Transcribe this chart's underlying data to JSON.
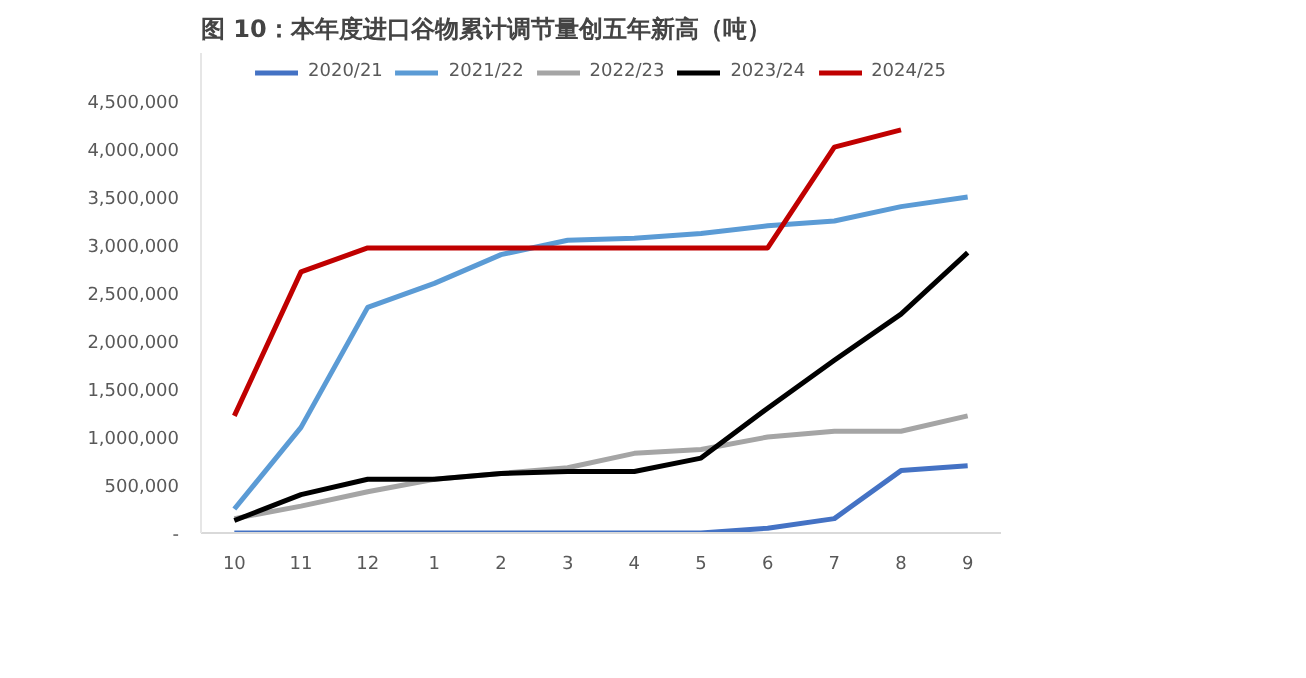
{
  "chart_data": {
    "type": "line",
    "title": "图 10：本年度进口谷物累计调节量创五年新高（吨）",
    "categories": [
      "10",
      "11",
      "12",
      "1",
      "2",
      "3",
      "4",
      "5",
      "6",
      "7",
      "8",
      "9"
    ],
    "series": [
      {
        "name": "2020/21",
        "color": "#4472c4",
        "values": [
          0,
          0,
          0,
          0,
          0,
          0,
          0,
          0,
          50000,
          150000,
          650000,
          700000
        ]
      },
      {
        "name": "2021/22",
        "color": "#5b9bd5",
        "values": [
          250000,
          1100000,
          2350000,
          2600000,
          2900000,
          3050000,
          3070000,
          3120000,
          3200000,
          3250000,
          3400000,
          3500000
        ]
      },
      {
        "name": "2022/23",
        "color": "#a5a5a5",
        "values": [
          150000,
          280000,
          430000,
          560000,
          620000,
          680000,
          830000,
          870000,
          1000000,
          1060000,
          1060000,
          1220000
        ]
      },
      {
        "name": "2023/24",
        "color": "#000000",
        "values": [
          130000,
          400000,
          560000,
          560000,
          620000,
          640000,
          640000,
          780000,
          1300000,
          1800000,
          2280000,
          2920000
        ]
      },
      {
        "name": "2024/25",
        "color": "#c00000",
        "values": [
          1220000,
          2720000,
          2970000,
          2970000,
          2970000,
          2970000,
          2970000,
          2970000,
          2970000,
          4020000,
          4200000,
          null
        ]
      }
    ],
    "ylim": [
      0,
      5000000
    ],
    "yticks": [
      {
        "value": 0,
        "label": "-"
      },
      {
        "value": 500000,
        "label": "500,000"
      },
      {
        "value": 1000000,
        "label": "1,000,000"
      },
      {
        "value": 1500000,
        "label": "1,500,000"
      },
      {
        "value": 2000000,
        "label": "2,000,000"
      },
      {
        "value": 2500000,
        "label": "2,500,000"
      },
      {
        "value": 3000000,
        "label": "3,000,000"
      },
      {
        "value": 3500000,
        "label": "3,500,000"
      },
      {
        "value": 4000000,
        "label": "4,000,000"
      },
      {
        "value": 4500000,
        "label": "4,500,000"
      }
    ],
    "grid": false,
    "legend": "top",
    "marker": "none",
    "line_style": "solid"
  }
}
